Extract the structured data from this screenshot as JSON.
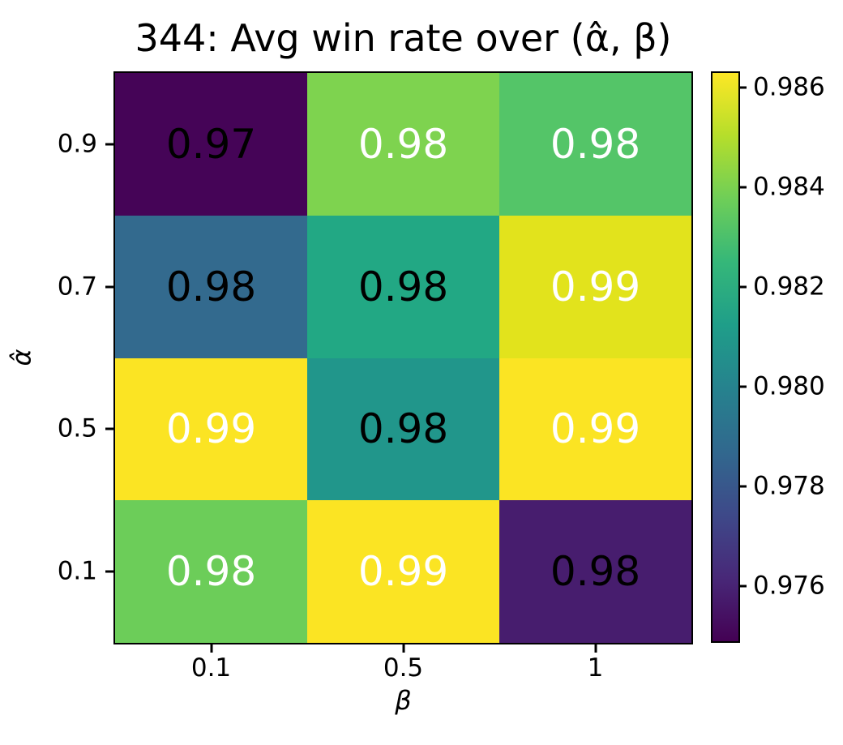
{
  "chart_data": {
    "type": "heatmap",
    "title": "344: Avg win rate over (α̂, β)",
    "xlabel": "β",
    "ylabel": "α̂",
    "x_tick_labels": [
      "0.1",
      "0.5",
      "1"
    ],
    "y_tick_labels": [
      "0.9",
      "0.7",
      "0.5",
      "0.1"
    ],
    "colormap": "viridis",
    "vmin": 0.9749,
    "vmax": 0.9863,
    "legend_position": "right-colorbar",
    "grid": false,
    "colorbar_tick_labels": [
      "0.986",
      "0.984",
      "0.982",
      "0.980",
      "0.978",
      "0.976"
    ],
    "colorbar_tick_values": [
      0.986,
      0.984,
      0.982,
      0.98,
      0.978,
      0.976
    ],
    "colorbar_gradient": [
      "#440154",
      "#482878",
      "#3e4989",
      "#31688e",
      "#26828e",
      "#1f9e89",
      "#35b779",
      "#6ece58",
      "#b5de2b",
      "#fde725"
    ],
    "rows": [
      {
        "y": "0.9",
        "cells": [
          {
            "label": "0.97",
            "value_est": 0.9749,
            "bg": "#450457",
            "fg": "#000000"
          },
          {
            "label": "0.98",
            "value_est": 0.9838,
            "bg": "#7ed34f",
            "fg": "#ffffff"
          },
          {
            "label": "0.98",
            "value_est": 0.9825,
            "bg": "#54c568",
            "fg": "#ffffff"
          }
        ]
      },
      {
        "y": "0.7",
        "cells": [
          {
            "label": "0.98",
            "value_est": 0.9783,
            "bg": "#336a8e",
            "fg": "#000000"
          },
          {
            "label": "0.98",
            "value_est": 0.9812,
            "bg": "#22a884",
            "fg": "#000000"
          },
          {
            "label": "0.99",
            "value_est": 0.9855,
            "bg": "#e2e31c",
            "fg": "#ffffff"
          }
        ]
      },
      {
        "y": "0.5",
        "cells": [
          {
            "label": "0.99",
            "value_est": 0.9862,
            "bg": "#fbe423",
            "fg": "#ffffff"
          },
          {
            "label": "0.98",
            "value_est": 0.9803,
            "bg": "#21968b",
            "fg": "#000000"
          },
          {
            "label": "0.99",
            "value_est": 0.9862,
            "bg": "#fbe423",
            "fg": "#ffffff"
          }
        ]
      },
      {
        "y": "0.1",
        "cells": [
          {
            "label": "0.98",
            "value_est": 0.9831,
            "bg": "#6ccd59",
            "fg": "#ffffff"
          },
          {
            "label": "0.99",
            "value_est": 0.986,
            "bg": "#fbe423",
            "fg": "#ffffff"
          },
          {
            "label": "0.98",
            "value_est": 0.9756,
            "bg": "#471d6e",
            "fg": "#000000"
          }
        ]
      }
    ]
  }
}
